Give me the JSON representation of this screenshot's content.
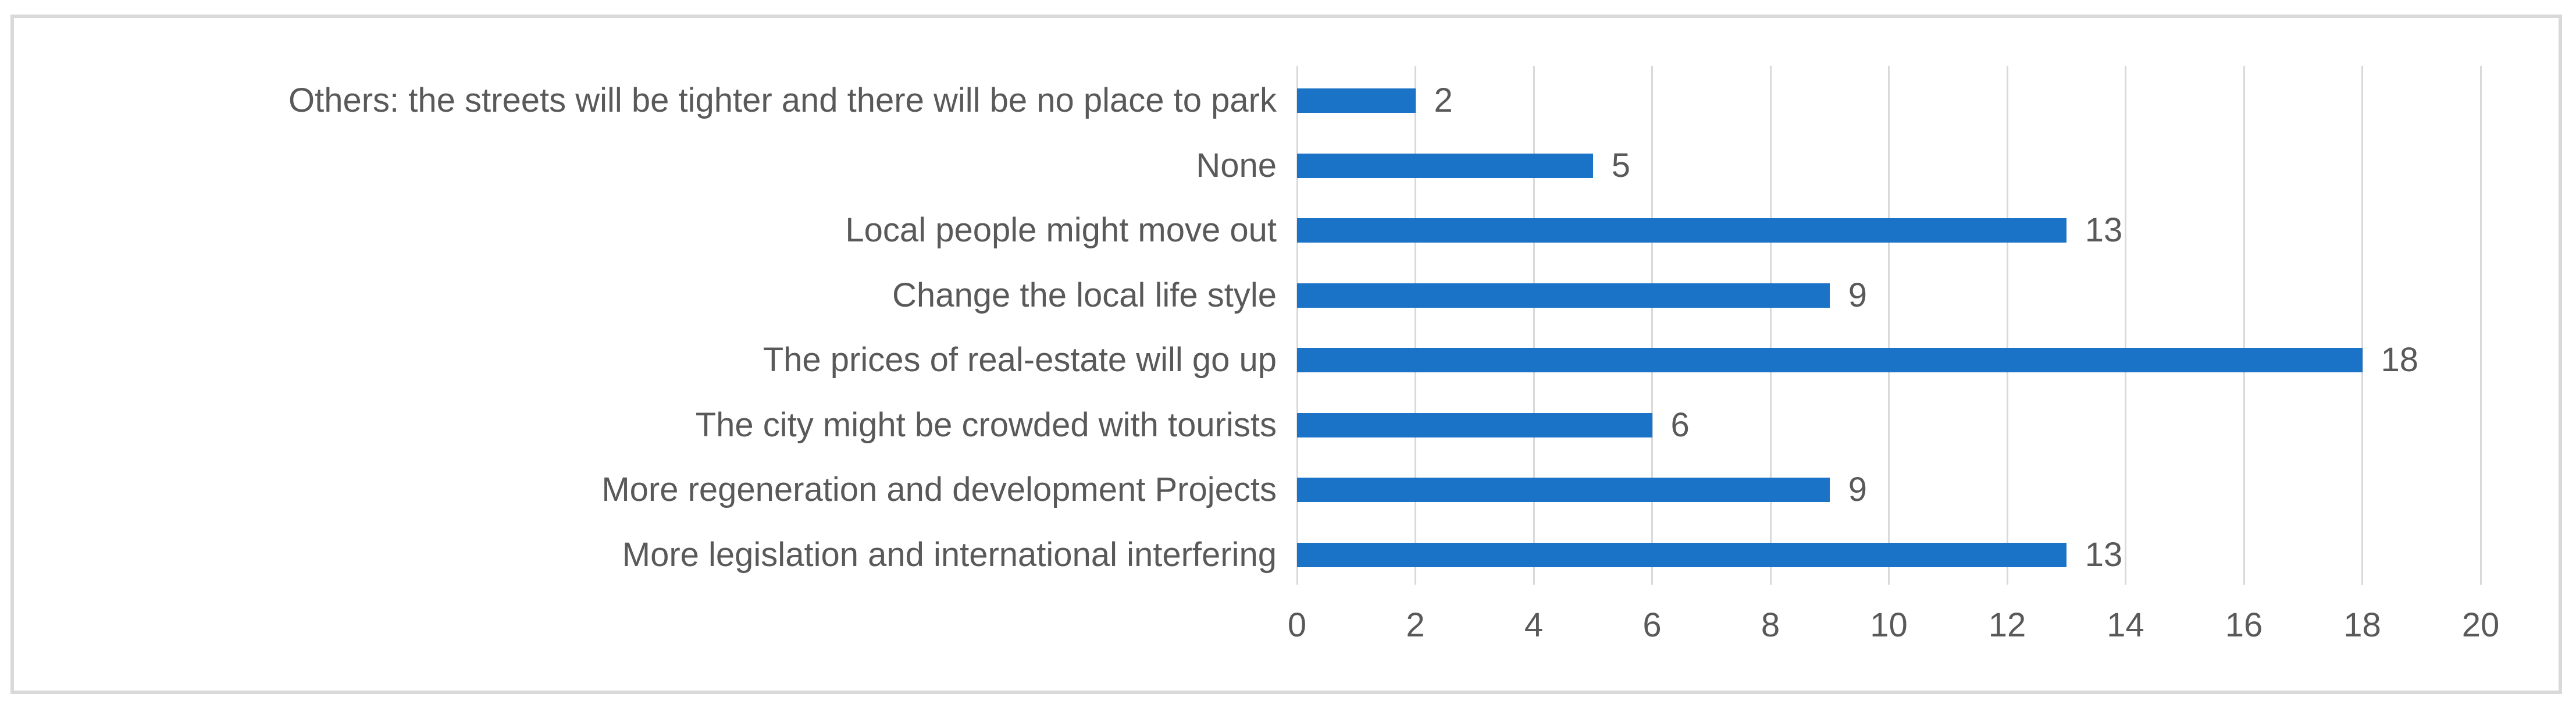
{
  "chart_data": {
    "type": "bar",
    "orientation": "horizontal",
    "title": "",
    "xlabel": "",
    "ylabel": "",
    "categories": [
      "Others: the streets will be tighter and there will be no place to park",
      "None",
      "Local people might move out",
      "Change the local life style",
      "The prices of real-estate will go up",
      "The city might be crowded with tourists",
      "More regeneration and development Projects",
      "More legislation and international interfering"
    ],
    "values": [
      2,
      5,
      13,
      9,
      18,
      6,
      9,
      13
    ],
    "data_labels": [
      "2",
      "5",
      "13",
      "9",
      "18",
      "6",
      "9",
      "13"
    ],
    "xlim": [
      0,
      20
    ],
    "xticks": [
      "0",
      "2",
      "4",
      "6",
      "8",
      "10",
      "12",
      "14",
      "16",
      "18",
      "20"
    ],
    "grid": "vertical-gridlines-on",
    "legend": "none",
    "colors": {
      "bar": "#1A73C7",
      "text": "#595959",
      "gridline": "#D9D9D9",
      "frame_border": "#D9D9D9",
      "background": "#FFFFFF"
    }
  }
}
